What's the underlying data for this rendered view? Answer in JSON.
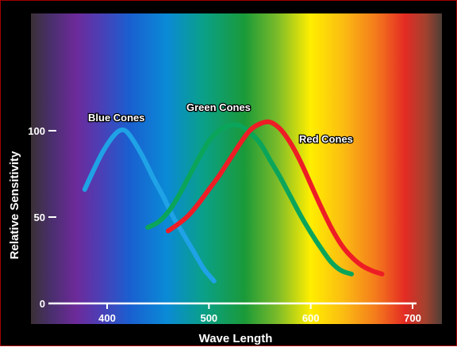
{
  "chart_data": {
    "type": "line",
    "xlabel": "Wave Length",
    "ylabel": "Relative Sensitivity",
    "xlim": [
      350,
      710
    ],
    "ylim": [
      0,
      100
    ],
    "xticks": [
      {
        "value": 400,
        "label": "400"
      },
      {
        "value": 500,
        "label": "500"
      },
      {
        "value": 600,
        "label": "600"
      },
      {
        "value": 700,
        "label": "700"
      }
    ],
    "yticks": [
      {
        "value": 0,
        "label": "0"
      },
      {
        "value": 50,
        "label": "50"
      },
      {
        "value": 100,
        "label": "100"
      }
    ],
    "grid": false,
    "legend": "none",
    "series": [
      {
        "name": "Blue Cones",
        "color": "#1fa2e6",
        "points": [
          [
            378,
            66
          ],
          [
            385,
            75
          ],
          [
            395,
            87
          ],
          [
            405,
            96
          ],
          [
            412,
            100
          ],
          [
            418,
            100
          ],
          [
            425,
            95
          ],
          [
            435,
            85
          ],
          [
            445,
            73
          ],
          [
            455,
            62
          ],
          [
            465,
            50
          ],
          [
            475,
            40
          ],
          [
            485,
            30
          ],
          [
            495,
            20
          ],
          [
            505,
            13
          ]
        ]
      },
      {
        "name": "Green Cones",
        "color": "#0aa55a",
        "points": [
          [
            440,
            44
          ],
          [
            450,
            47
          ],
          [
            460,
            53
          ],
          [
            470,
            62
          ],
          [
            480,
            73
          ],
          [
            490,
            84
          ],
          [
            500,
            94
          ],
          [
            510,
            100
          ],
          [
            520,
            103
          ],
          [
            530,
            103
          ],
          [
            540,
            99
          ],
          [
            550,
            93
          ],
          [
            560,
            83
          ],
          [
            570,
            73
          ],
          [
            580,
            62
          ],
          [
            590,
            51
          ],
          [
            600,
            41
          ],
          [
            610,
            32
          ],
          [
            620,
            24
          ],
          [
            630,
            19
          ],
          [
            640,
            17
          ]
        ]
      },
      {
        "name": "Red Cones",
        "color": "#ee1d25",
        "points": [
          [
            460,
            42
          ],
          [
            470,
            46
          ],
          [
            480,
            51
          ],
          [
            490,
            58
          ],
          [
            500,
            66
          ],
          [
            510,
            74
          ],
          [
            520,
            83
          ],
          [
            530,
            92
          ],
          [
            540,
            100
          ],
          [
            550,
            104
          ],
          [
            560,
            105
          ],
          [
            570,
            101
          ],
          [
            580,
            93
          ],
          [
            590,
            82
          ],
          [
            600,
            69
          ],
          [
            610,
            56
          ],
          [
            620,
            44
          ],
          [
            630,
            34
          ],
          [
            640,
            27
          ],
          [
            650,
            22
          ],
          [
            660,
            19
          ],
          [
            670,
            17
          ]
        ]
      }
    ]
  }
}
